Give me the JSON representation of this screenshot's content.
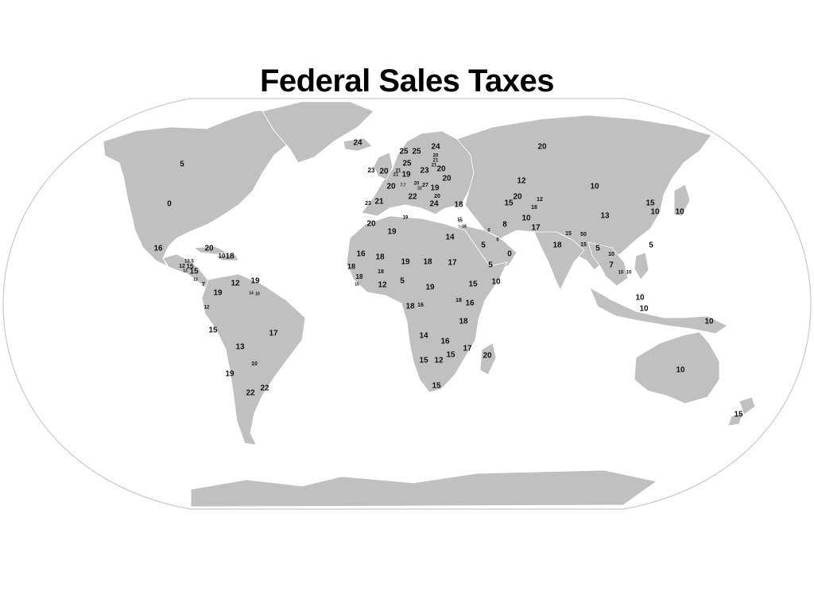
{
  "title": "Federal Sales Taxes",
  "colors": {
    "land": "#c0c0c0",
    "ocean": "#ffffff",
    "ocean_border": "#c8c8c8",
    "borders": "#ffffff",
    "text": "#111111"
  },
  "labels": [
    {
      "region": "canada",
      "text": "5"
    },
    {
      "region": "usa",
      "text": "0"
    },
    {
      "region": "greenland-iceland",
      "text": "24"
    },
    {
      "region": "mexico",
      "text": "16"
    },
    {
      "region": "cuba",
      "text": "20"
    },
    {
      "region": "caribbean-a",
      "text": "10"
    },
    {
      "region": "caribbean-b",
      "text": "18"
    },
    {
      "region": "belize",
      "text": "12.5"
    },
    {
      "region": "guatemala",
      "text": "12"
    },
    {
      "region": "honduras",
      "text": "15"
    },
    {
      "region": "el-salvador",
      "text": "13"
    },
    {
      "region": "nicaragua",
      "text": "15"
    },
    {
      "region": "costa-rica",
      "text": "13"
    },
    {
      "region": "panama",
      "text": "7"
    },
    {
      "region": "venezuela",
      "text": "12"
    },
    {
      "region": "guyana",
      "text": "19"
    },
    {
      "region": "suriname",
      "text": "14"
    },
    {
      "region": "fr-guiana",
      "text": "10"
    },
    {
      "region": "colombia",
      "text": "19"
    },
    {
      "region": "ecuador",
      "text": "12"
    },
    {
      "region": "peru",
      "text": "15"
    },
    {
      "region": "brazil",
      "text": "17"
    },
    {
      "region": "bolivia",
      "text": "13"
    },
    {
      "region": "paraguay",
      "text": "10"
    },
    {
      "region": "chile",
      "text": "19"
    },
    {
      "region": "argentina",
      "text": "22"
    },
    {
      "region": "uruguay",
      "text": "22"
    },
    {
      "region": "norway",
      "text": "25"
    },
    {
      "region": "sweden",
      "text": "25"
    },
    {
      "region": "finland",
      "text": "24"
    },
    {
      "region": "estonia",
      "text": "20"
    },
    {
      "region": "latvia",
      "text": "21"
    },
    {
      "region": "lithuania",
      "text": "21"
    },
    {
      "region": "denmark",
      "text": "25"
    },
    {
      "region": "ireland",
      "text": "23"
    },
    {
      "region": "uk",
      "text": "20"
    },
    {
      "region": "netherlands",
      "text": "21"
    },
    {
      "region": "belgium",
      "text": "21"
    },
    {
      "region": "germany",
      "text": "19"
    },
    {
      "region": "poland",
      "text": "23"
    },
    {
      "region": "belarus",
      "text": "20"
    },
    {
      "region": "ukraine",
      "text": "20"
    },
    {
      "region": "france",
      "text": "20"
    },
    {
      "region": "switzerland",
      "text": "7.7"
    },
    {
      "region": "austria",
      "text": "20"
    },
    {
      "region": "hungary",
      "text": "27"
    },
    {
      "region": "slovenia",
      "text": "22"
    },
    {
      "region": "romania",
      "text": "19"
    },
    {
      "region": "bulgaria",
      "text": "20"
    },
    {
      "region": "italy",
      "text": "22"
    },
    {
      "region": "greece",
      "text": "24"
    },
    {
      "region": "turkey",
      "text": "18"
    },
    {
      "region": "portugal",
      "text": "23"
    },
    {
      "region": "spain",
      "text": "21"
    },
    {
      "region": "russia",
      "text": "20"
    },
    {
      "region": "kazakhstan",
      "text": "12"
    },
    {
      "region": "uzbekistan",
      "text": "20"
    },
    {
      "region": "turkmenistan",
      "text": "15"
    },
    {
      "region": "kyrgyzstan",
      "text": "12"
    },
    {
      "region": "tajikistan",
      "text": "18"
    },
    {
      "region": "mongolia",
      "text": "10"
    },
    {
      "region": "china",
      "text": "13"
    },
    {
      "region": "north-korea",
      "text": "15"
    },
    {
      "region": "south-korea",
      "text": "10"
    },
    {
      "region": "japan",
      "text": "10"
    },
    {
      "region": "taiwan",
      "text": "5"
    },
    {
      "region": "cyprus",
      "text": "19"
    },
    {
      "region": "lebanon",
      "text": "17"
    },
    {
      "region": "israel",
      "text": "18"
    },
    {
      "region": "kuwait",
      "text": "0"
    },
    {
      "region": "qatar",
      "text": "0"
    },
    {
      "region": "iran",
      "text": "8"
    },
    {
      "region": "afghanistan",
      "text": "10"
    },
    {
      "region": "pakistan",
      "text": "17"
    },
    {
      "region": "nepal",
      "text": "15"
    },
    {
      "region": "bhutan",
      "text": "50"
    },
    {
      "region": "bangladesh",
      "text": "15"
    },
    {
      "region": "india",
      "text": "18"
    },
    {
      "region": "myanmar",
      "text": "5"
    },
    {
      "region": "laos",
      "text": "10"
    },
    {
      "region": "thailand",
      "text": "7"
    },
    {
      "region": "cambodia",
      "text": "10"
    },
    {
      "region": "vietnam",
      "text": "10"
    },
    {
      "region": "saudi-arabia",
      "text": "5"
    },
    {
      "region": "oman",
      "text": "0"
    },
    {
      "region": "yemen",
      "text": "5"
    },
    {
      "region": "morocco",
      "text": "20"
    },
    {
      "region": "algeria",
      "text": "19"
    },
    {
      "region": "tunisia",
      "text": "19"
    },
    {
      "region": "egypt",
      "text": "14"
    },
    {
      "region": "mauritania",
      "text": "16"
    },
    {
      "region": "mali",
      "text": "18"
    },
    {
      "region": "niger",
      "text": "19"
    },
    {
      "region": "chad",
      "text": "18"
    },
    {
      "region": "sudan",
      "text": "17"
    },
    {
      "region": "senegal",
      "text": "18"
    },
    {
      "region": "guinea",
      "text": "18"
    },
    {
      "region": "sierra-leone",
      "text": "15"
    },
    {
      "region": "burkina-faso",
      "text": "18"
    },
    {
      "region": "ghana",
      "text": "12"
    },
    {
      "region": "nigeria",
      "text": "5"
    },
    {
      "region": "cameroon",
      "text": "19"
    },
    {
      "region": "ethiopia",
      "text": "15"
    },
    {
      "region": "somalia",
      "text": "10"
    },
    {
      "region": "gabon",
      "text": "18"
    },
    {
      "region": "congo",
      "text": "16"
    },
    {
      "region": "uganda",
      "text": "18"
    },
    {
      "region": "kenya",
      "text": "16"
    },
    {
      "region": "tanzania",
      "text": "18"
    },
    {
      "region": "angola",
      "text": "14"
    },
    {
      "region": "zambia",
      "text": "16"
    },
    {
      "region": "mozambique",
      "text": "17"
    },
    {
      "region": "madagascar",
      "text": "20"
    },
    {
      "region": "zimbabwe",
      "text": "15"
    },
    {
      "region": "namibia",
      "text": "15"
    },
    {
      "region": "botswana",
      "text": "12"
    },
    {
      "region": "south-africa",
      "text": "15"
    },
    {
      "region": "philippines",
      "text": "10"
    },
    {
      "region": "indonesia",
      "text": "10"
    },
    {
      "region": "papua-new-guinea",
      "text": "10"
    },
    {
      "region": "australia",
      "text": "10"
    },
    {
      "region": "new-zealand",
      "text": "15"
    }
  ]
}
